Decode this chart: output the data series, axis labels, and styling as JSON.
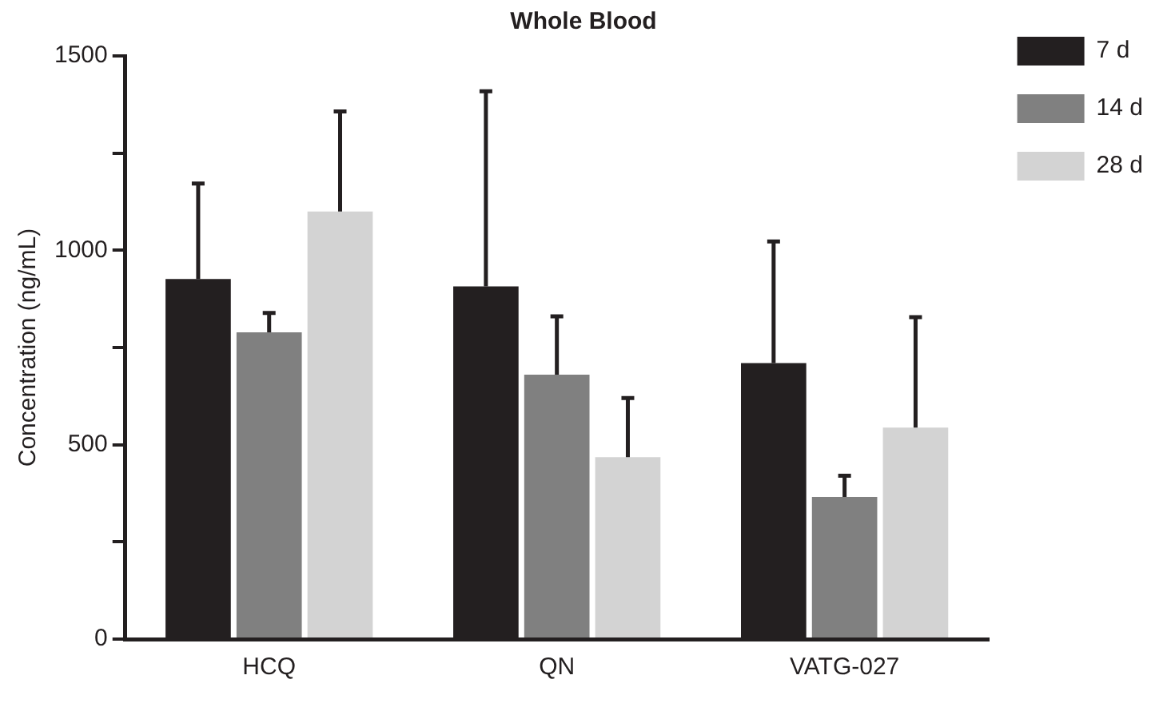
{
  "chart_data": {
    "type": "bar",
    "title": "Whole Blood",
    "ylabel": "Concentration (ng/mL)",
    "categories": [
      "HCQ",
      "QN",
      "VATG-027"
    ],
    "series": [
      {
        "name": "7 d",
        "color": "#231f20",
        "values": [
          926,
          907,
          710
        ],
        "errors": [
          [
            926,
            1172
          ],
          [
            907,
            1409
          ],
          [
            710,
            1023
          ]
        ]
      },
      {
        "name": "14 d",
        "color": "#808080",
        "values": [
          789,
          680,
          366
        ],
        "errors": [
          [
            789,
            839
          ],
          [
            680,
            830
          ],
          [
            366,
            420
          ]
        ]
      },
      {
        "name": "28 d",
        "color": "#d3d3d3",
        "values": [
          1100,
          468,
          544
        ],
        "errors": [
          [
            1100,
            1357
          ],
          [
            468,
            620
          ],
          [
            544,
            828
          ]
        ]
      }
    ],
    "ylim": [
      0,
      1500
    ],
    "yticks": [
      0,
      {
        "value": 250,
        "label": null
      },
      500,
      {
        "value": 750,
        "label": null
      },
      1000,
      {
        "value": 1250,
        "label": null
      },
      1500
    ],
    "grid": false,
    "legend": "top right"
  }
}
